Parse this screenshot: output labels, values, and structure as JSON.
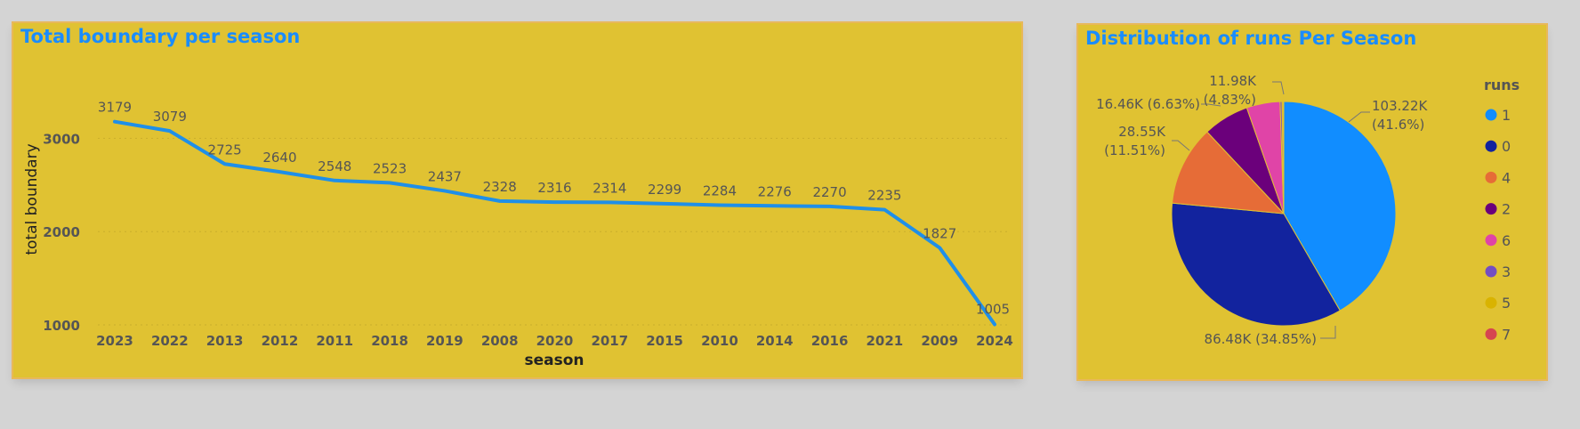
{
  "line_card": {
    "title": "Total boundary per season"
  },
  "pie_card": {
    "title": "Distribution of runs Per Season"
  },
  "chart_data": [
    {
      "type": "line",
      "title": "Total boundary per season",
      "xlabel": "season",
      "ylabel": "total boundary",
      "categories": [
        "2023",
        "2022",
        "2013",
        "2012",
        "2011",
        "2018",
        "2019",
        "2008",
        "2020",
        "2017",
        "2015",
        "2010",
        "2014",
        "2016",
        "2021",
        "2009",
        "2024"
      ],
      "series": [
        {
          "values": [
            3179,
            3079,
            2725,
            2640,
            2548,
            2523,
            2437,
            2328,
            2316,
            2314,
            2299,
            2284,
            2276,
            2270,
            2235,
            1827,
            1005
          ],
          "color": "#1f8fe8"
        }
      ],
      "yticks": [
        1000,
        2000,
        3000
      ],
      "ylim": [
        1000,
        3300
      ],
      "grid": true
    },
    {
      "type": "pie",
      "title": "Distribution of runs Per Season",
      "legend_title": "runs",
      "legend_position": "right",
      "slices": [
        {
          "name": "1",
          "value": 103220,
          "label": "103.22K",
          "pct": "(41.6%)",
          "color": "#118dff"
        },
        {
          "name": "0",
          "value": 86480,
          "label": "86.48K (34.85%)",
          "pct": "",
          "color": "#12239e"
        },
        {
          "name": "4",
          "value": 28550,
          "label": "28.55K",
          "pct": "(11.51%)",
          "color": "#e66c37"
        },
        {
          "name": "2",
          "value": 16460,
          "label": "16.46K (6.63%)",
          "pct": "",
          "color": "#6b007b"
        },
        {
          "name": "6",
          "value": 11980,
          "label": "11.98K",
          "pct": "(4.83%)",
          "color": "#e044a7"
        },
        {
          "name": "3",
          "value": 700,
          "label": "",
          "pct": "",
          "color": "#744ec2"
        },
        {
          "name": "5",
          "value": 400,
          "label": "",
          "pct": "",
          "color": "#d9b300"
        },
        {
          "name": "7",
          "value": 200,
          "label": "",
          "pct": "",
          "color": "#d64550"
        }
      ]
    }
  ]
}
